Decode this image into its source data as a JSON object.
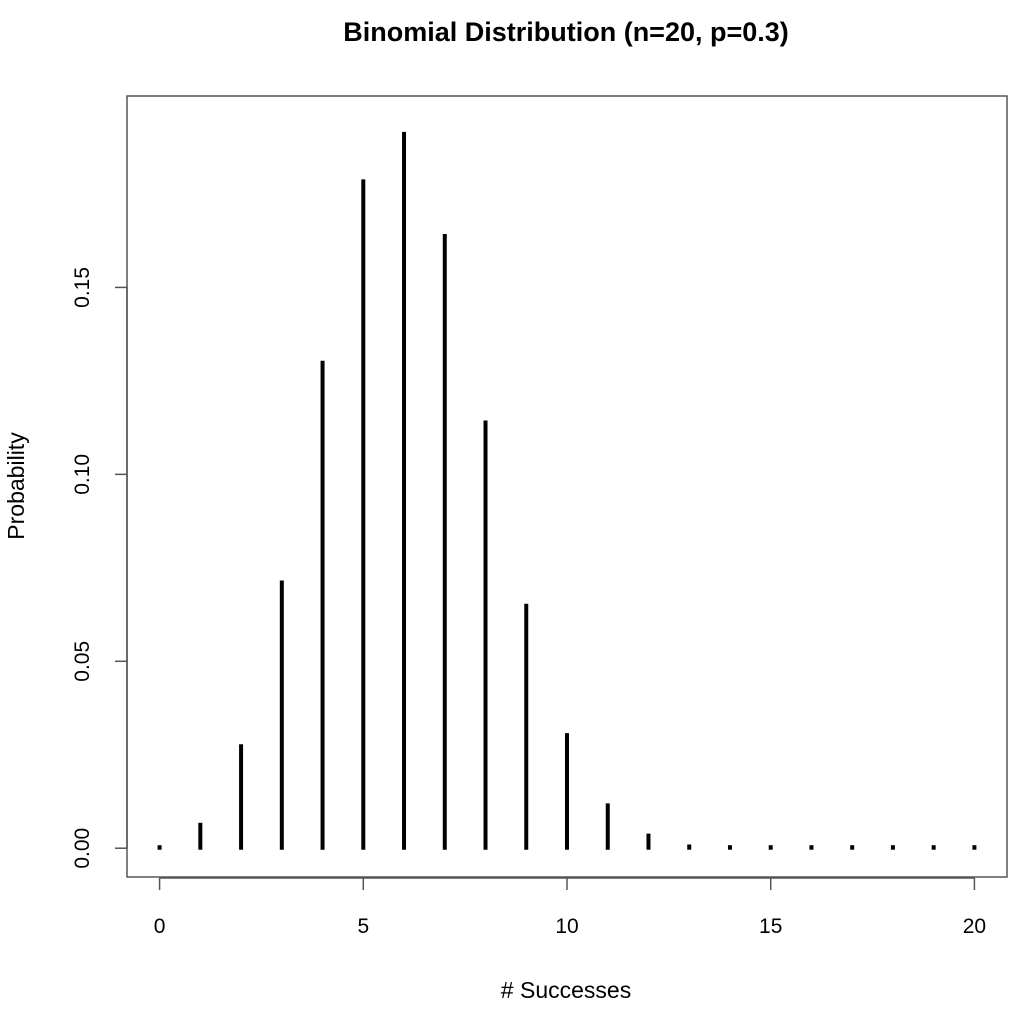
{
  "chart_data": {
    "type": "bar",
    "title": "Binomial Distribution (n=20, p=0.3)",
    "xlabel": "# Successes",
    "ylabel": "Probability",
    "x": [
      0,
      1,
      2,
      3,
      4,
      5,
      6,
      7,
      8,
      9,
      10,
      11,
      12,
      13,
      14,
      15,
      16,
      17,
      18,
      19,
      20
    ],
    "values": [
      0.0008,
      0.0068,
      0.0278,
      0.0716,
      0.1304,
      0.1789,
      0.1916,
      0.1643,
      0.1144,
      0.0654,
      0.0308,
      0.012,
      0.0039,
      0.001,
      0.0002,
      0.0,
      0.0,
      0.0,
      0.0,
      0.0,
      0.0
    ],
    "xlim": [
      -0.8,
      20.8
    ],
    "ylim": [
      -0.0077,
      0.2012
    ],
    "xticks": [
      0,
      5,
      10,
      15,
      20
    ],
    "xtick_labels": [
      "0",
      "5",
      "10",
      "15",
      "20"
    ],
    "yticks": [
      0.0,
      0.05,
      0.1,
      0.15
    ],
    "ytick_labels": [
      "0.00",
      "0.05",
      "0.10",
      "0.15"
    ],
    "grid": false,
    "color": "#000000"
  }
}
